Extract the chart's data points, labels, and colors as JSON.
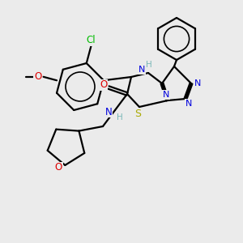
{
  "bg_color": "#ebebeb",
  "atom_colors": {
    "C": "#000000",
    "H": "#7ab8b8",
    "N": "#0000dd",
    "O": "#dd0000",
    "S": "#aaaa00",
    "Cl": "#00bb00"
  },
  "bond_color": "#000000",
  "bond_width": 1.6
}
